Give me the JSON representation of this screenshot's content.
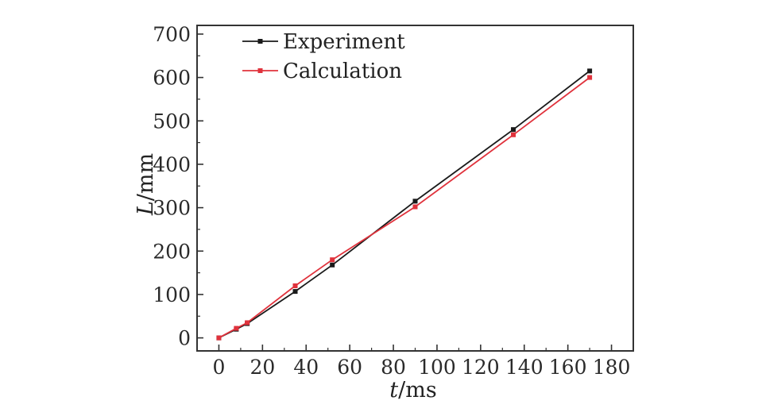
{
  "chart_data": {
    "type": "line",
    "title": "",
    "xlabel": {
      "symbol": "t",
      "unit": "/ms"
    },
    "ylabel": {
      "symbol": "L",
      "unit": "/mm"
    },
    "xlim": [
      -10,
      190
    ],
    "ylim": [
      -30,
      720
    ],
    "xticks": [
      0,
      20,
      40,
      60,
      80,
      100,
      120,
      140,
      160,
      180
    ],
    "yticks": [
      0,
      100,
      200,
      300,
      400,
      500,
      600,
      700
    ],
    "grid": false,
    "legend_position": "top-left",
    "series": [
      {
        "name": "Experiment",
        "color": "#1a1a1a",
        "marker": "square",
        "x": [
          0,
          8,
          13,
          35,
          52,
          90,
          135,
          170
        ],
        "y": [
          0,
          20,
          33,
          107,
          168,
          315,
          480,
          615
        ]
      },
      {
        "name": "Calculation",
        "color": "#e0323c",
        "marker": "square",
        "x": [
          0,
          8,
          13,
          35,
          52,
          90,
          135,
          170
        ],
        "y": [
          0,
          22,
          35,
          120,
          180,
          302,
          468,
          600
        ]
      }
    ]
  }
}
